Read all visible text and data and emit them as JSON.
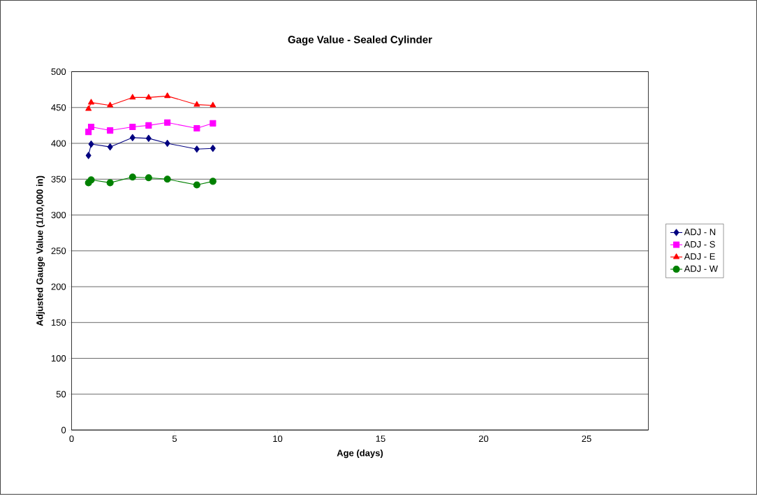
{
  "chart_data": {
    "type": "line",
    "title": "Gage Value - Sealed Cylinder",
    "xlabel": "Age (days)",
    "ylabel": "Adjusted Gauge Value (1/10,000 in)",
    "x": [
      0.82,
      0.95,
      1.87,
      2.96,
      3.74,
      4.65,
      6.08,
      6.86
    ],
    "series": [
      {
        "name": "ADJ - N",
        "color": "#000080",
        "marker": "diamond",
        "values": [
          383,
          399,
          395,
          408,
          407,
          400,
          392,
          393
        ]
      },
      {
        "name": "ADJ - S",
        "color": "#ff00ff",
        "marker": "square",
        "values": [
          416,
          423,
          418,
          423,
          425,
          429,
          421,
          428
        ]
      },
      {
        "name": "ADJ - E",
        "color": "#ff0000",
        "marker": "triangle",
        "values": [
          448,
          457,
          453,
          464,
          464,
          466,
          454,
          453
        ]
      },
      {
        "name": "ADJ - W",
        "color": "#008000",
        "marker": "circle",
        "values": [
          345,
          349,
          345,
          353,
          352,
          350,
          342,
          347
        ]
      }
    ],
    "xlim": [
      0,
      28
    ],
    "xticks": [
      0,
      5,
      10,
      15,
      20,
      25
    ],
    "ylim": [
      0,
      500
    ],
    "yticks": [
      0,
      50,
      100,
      150,
      200,
      250,
      300,
      350,
      400,
      450,
      500
    ],
    "grid": "y",
    "legend": "right",
    "line_style": "solid"
  }
}
